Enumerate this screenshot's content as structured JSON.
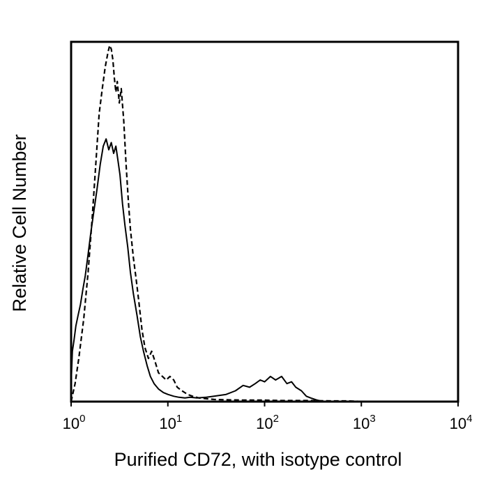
{
  "chart_data": {
    "type": "line",
    "title": "",
    "xlabel": "Purified CD72, with isotype control",
    "ylabel": "Relative Cell Number",
    "x_scale": "log",
    "xlim": [
      1,
      10000
    ],
    "ylim": [
      0,
      1
    ],
    "grid": false,
    "x_ticks": [
      {
        "value": 1,
        "base": "10",
        "exp": "0"
      },
      {
        "value": 10,
        "base": "10",
        "exp": "1"
      },
      {
        "value": 100,
        "base": "10",
        "exp": "2"
      },
      {
        "value": 1000,
        "base": "10",
        "exp": "3"
      },
      {
        "value": 10000,
        "base": "10",
        "exp": "4"
      }
    ],
    "series": [
      {
        "style": "solid",
        "color": "#000000",
        "x": [
          1.0,
          1.03,
          1.07,
          1.12,
          1.18,
          1.25,
          1.32,
          1.4,
          1.5,
          1.6,
          1.72,
          1.85,
          2.0,
          2.15,
          2.3,
          2.45,
          2.6,
          2.75,
          2.9,
          3.05,
          3.2,
          3.4,
          3.6,
          3.85,
          4.1,
          4.4,
          4.8,
          5.2,
          5.6,
          6.1,
          6.6,
          7.2,
          8.0,
          9.0,
          10.0,
          11.5,
          13,
          15,
          17,
          20,
          25,
          30,
          40,
          50,
          60,
          70,
          80,
          90,
          100,
          115,
          130,
          150,
          170,
          190,
          210,
          240,
          270,
          300,
          350,
          400
        ],
        "y": [
          0.05,
          0.14,
          0.17,
          0.21,
          0.24,
          0.27,
          0.31,
          0.35,
          0.41,
          0.47,
          0.53,
          0.59,
          0.66,
          0.71,
          0.73,
          0.7,
          0.72,
          0.69,
          0.71,
          0.67,
          0.63,
          0.55,
          0.49,
          0.43,
          0.36,
          0.3,
          0.24,
          0.18,
          0.14,
          0.1,
          0.07,
          0.05,
          0.035,
          0.025,
          0.02,
          0.015,
          0.012,
          0.01,
          0.012,
          0.01,
          0.012,
          0.015,
          0.02,
          0.03,
          0.045,
          0.04,
          0.05,
          0.06,
          0.055,
          0.07,
          0.06,
          0.07,
          0.05,
          0.055,
          0.04,
          0.03,
          0.015,
          0.01,
          0.004,
          0.0
        ]
      },
      {
        "style": "dashed",
        "color": "#000000",
        "x": [
          1.0,
          1.1,
          1.2,
          1.35,
          1.5,
          1.65,
          1.8,
          1.95,
          2.1,
          2.25,
          2.4,
          2.5,
          2.6,
          2.7,
          2.8,
          2.9,
          3.0,
          3.15,
          3.3,
          3.5,
          3.7,
          3.9,
          4.1,
          4.4,
          4.7,
          5.0,
          5.4,
          5.8,
          6.3,
          6.8,
          7.4,
          8.0,
          8.8,
          9.6,
          10.5,
          11.5,
          12.5,
          14,
          16,
          18,
          21,
          25,
          30,
          40,
          60,
          100,
          150,
          200,
          300,
          500,
          700,
          900,
          1000
        ],
        "y": [
          0.0,
          0.05,
          0.12,
          0.23,
          0.36,
          0.51,
          0.66,
          0.8,
          0.87,
          0.93,
          0.97,
          0.99,
          0.98,
          0.95,
          0.9,
          0.86,
          0.89,
          0.83,
          0.87,
          0.78,
          0.66,
          0.56,
          0.48,
          0.4,
          0.34,
          0.28,
          0.2,
          0.15,
          0.12,
          0.14,
          0.11,
          0.08,
          0.07,
          0.06,
          0.07,
          0.06,
          0.04,
          0.03,
          0.02,
          0.015,
          0.01,
          0.008,
          0.006,
          0.005,
          0.004,
          0.004,
          0.003,
          0.003,
          0.003,
          0.002,
          0.002,
          0.001,
          0.0
        ]
      }
    ]
  }
}
